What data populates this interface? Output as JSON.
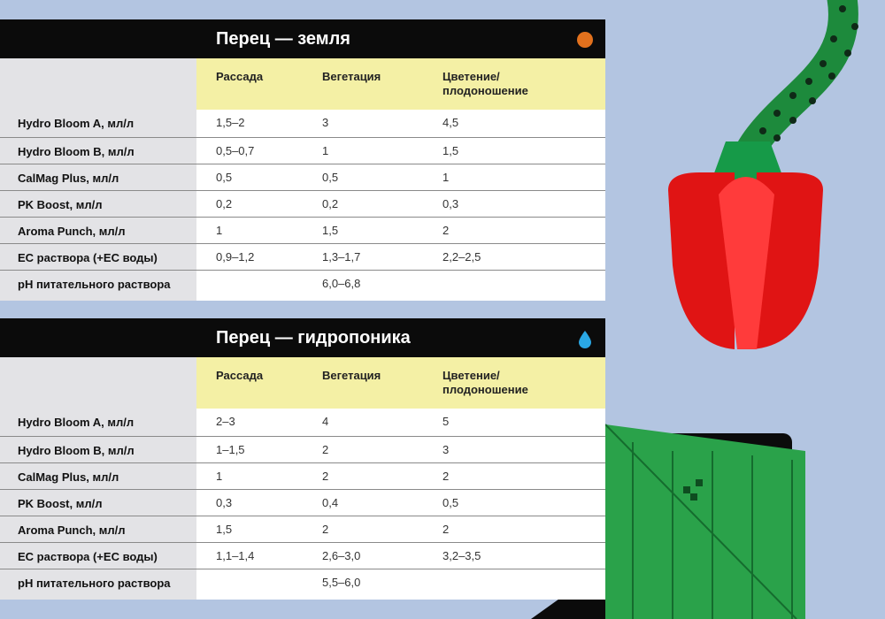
{
  "colors": {
    "background": "#b3c5e1",
    "header": "#0b0b0b",
    "stage_row": "#f4f0a5",
    "label_column": "#e3e3e6",
    "soil_icon": "#e2711d",
    "water_icon": "#2aa7e4"
  },
  "stages": [
    "Рассада",
    "Вегетация",
    "Цветение/\nплодоношение"
  ],
  "tables": [
    {
      "title": "Перец — земля",
      "icon": "orange-dot-icon",
      "rows": [
        {
          "label": "Hydro Bloom A, мл/л",
          "values": [
            "1,5–2",
            "3",
            "4,5"
          ]
        },
        {
          "label": "Hydro Bloom B, мл/л",
          "values": [
            "0,5–0,7",
            "1",
            "1,5"
          ]
        },
        {
          "label": "CalMag Plus, мл/л",
          "values": [
            "0,5",
            "0,5",
            "1"
          ]
        },
        {
          "label": "PK Boost, мл/л",
          "values": [
            "0,2",
            "0,2",
            "0,3"
          ]
        },
        {
          "label": "Aroma Punch, мл/л",
          "values": [
            "1",
            "1,5",
            "2"
          ]
        },
        {
          "label": "EC раствора (+EC воды)",
          "values": [
            "0,9–1,2",
            "1,3–1,7",
            "2,2–2,5"
          ]
        },
        {
          "label": "pH питательного раствора",
          "values": [
            "",
            "6,0–6,8",
            ""
          ]
        }
      ]
    },
    {
      "title": "Перец — гидропоника",
      "icon": "water-drop-icon",
      "rows": [
        {
          "label": "Hydro Bloom A, мл/л",
          "values": [
            "2–3",
            "4",
            "5"
          ]
        },
        {
          "label": "Hydro Bloom B, мл/л",
          "values": [
            "1–1,5",
            "2",
            "3"
          ]
        },
        {
          "label": "CalMag Plus, мл/л",
          "values": [
            "1",
            "2",
            "2"
          ]
        },
        {
          "label": "PK Boost, мл/л",
          "values": [
            "0,3",
            "0,4",
            "0,5"
          ]
        },
        {
          "label": "Aroma Punch, мл/л",
          "values": [
            "1,5",
            "2",
            "2"
          ]
        },
        {
          "label": "EC раствора (+EC воды)",
          "values": [
            "1,1–1,4",
            "2,6–3,0",
            "3,2–3,5"
          ]
        },
        {
          "label": "pH питательного раствора",
          "values": [
            "",
            "5,5–6,0",
            ""
          ]
        }
      ]
    }
  ]
}
